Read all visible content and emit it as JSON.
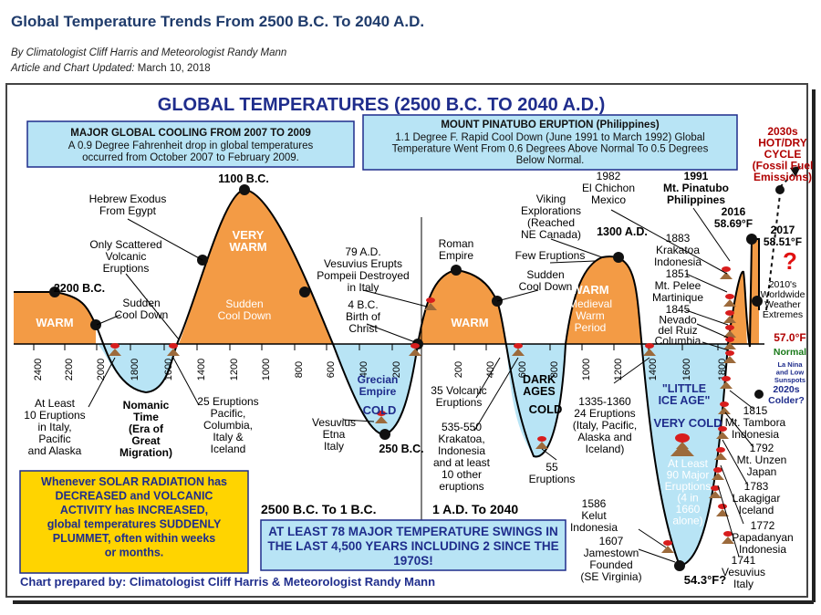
{
  "header": {
    "title": "Global Temperature Trends From 2500 B.C. To 2040 A.D.",
    "byline": "By Climatologist Cliff Harris and Meteorologist Randy Mann",
    "updated_label": "Article and Chart Updated:",
    "updated_date": "March 10, 2018"
  },
  "chart_data": {
    "type": "line",
    "title": "GLOBAL TEMPERATURES (2500 B.C. TO 2040 A.D.)",
    "xlabel": "",
    "ylabel": "",
    "x_ticks_bc": [
      "2400",
      "2200",
      "2000",
      "1800",
      "1600",
      "1400",
      "1200",
      "1000",
      "800",
      "600",
      "400",
      "200"
    ],
    "x_ticks_ad": [
      "200",
      "400",
      "600",
      "800",
      "1000",
      "1200",
      "1400",
      "1600",
      "1800"
    ],
    "era_labels": {
      "bc": "2500 B.C. To 1 B.C.",
      "ad": "1 A.D. To 2040"
    },
    "points": [
      {
        "label": "2200 B.C.",
        "year": -2200
      },
      {
        "label": "Sudden Cool Down",
        "year": -1950
      },
      {
        "label": "Hebrew Exodus From Egypt",
        "year": -1420
      },
      {
        "label": "1100 B.C.",
        "year": -1100
      },
      {
        "label": "Sudden Cool Down",
        "year": -760
      },
      {
        "label": "250 B.C.",
        "year": -250
      },
      {
        "label": "1 A.D.",
        "year": 1
      },
      {
        "label": "Roman Empire",
        "year": 250
      },
      {
        "label": "Sudden Cool Down",
        "year": 530
      },
      {
        "label": "1300 A.D.",
        "year": 1300
      },
      {
        "label": "54.3°F?",
        "year": 1680
      },
      {
        "label": "2016 58.69°F",
        "year": 2016
      },
      {
        "label": "2017 58.51°F",
        "year": 2017
      }
    ],
    "period_labels": [
      "WARM",
      "VERY WARM",
      "WARM",
      "WARM",
      "Medieval Warm Period",
      "Nomanic Time (Era of Great Migration)",
      "Grecian Empire",
      "COLD",
      "DARK AGES",
      "COLD",
      "\"LITTLE ICE AGE\"",
      "VERY COLD"
    ],
    "normal_label": "57.0°F",
    "normal_word": "Normal",
    "future": {
      "label": "2030s HOT/DRY CYCLE (Fossil Fuel Emissions)",
      "question": "?",
      "cold_label": "2020s Colder?",
      "enso": "La Nina and Low Sunspots"
    },
    "annotations": [
      "Sudden Cool Down",
      "Only Scattered Volcanic Eruptions",
      "Sudden Cool Down",
      "79 A.D. Vesuvius Erupts Pompeii Destroyed in Italy",
      "4 B.C. Birth of Christ",
      "Viking Explorations (Reached NE Canada)",
      "Few Eruptions",
      "Sudden Cool Down",
      "1982 El Chichon Mexico",
      "1991 Mt. Pinatubo Philippines",
      "1883 Krakatoa Indonesia",
      "1851 Mt. Pelee Martinique",
      "1845 Nevado del Ruiz Columbia",
      "2010's Worldwide Weather Extremes",
      "At Least 10 Eruptions in Italy, Pacific and Alaska",
      "25 Eruptions Pacific, Columbia, Italy & Iceland",
      "Vesuvius Etna Italy",
      "35 Volcanic Eruptions",
      "535-550 Krakatoa, Indonesia and at least 10 other eruptions",
      "55 Eruptions",
      "1335-1360 24 Eruptions (Italy, Pacific, Alaska and Iceland)",
      "At Least 90 Major Eruptions (4 in 1660 alone)",
      "1815 Mt. Tambora Indonesia",
      "1792 Mt. Unzen Japan",
      "1783 Lakagigar Iceland",
      "1772 Papadanyan Indonesia",
      "1741 Vesuvius Italy",
      "1586 Kelut Indonesia",
      "1607 Jamestown Founded (SE Virginia)"
    ],
    "box_cooling": {
      "title": "MAJOR GLOBAL COOLING FROM 2007 TO 2009",
      "text": "A 0.9 Degree Fahrenheit drop in global temperatures occurred from October 2007 to February 2009."
    },
    "box_pinatubo": {
      "title": "MOUNT PINATUBO ERUPTION (Philippines)",
      "text": "1.1 Degree F. Rapid Cool Down (June 1991 to March 1992) Global Temperature Went From 0.6 Degrees Above Normal To 0.5 Degrees Below Normal."
    },
    "box_solar": "Whenever SOLAR RADIATION has DECREASED and VOLCANIC ACTIVITY has INCREASED, global temperatures SUDDENLY PLUMMET, often within weeks or months.",
    "box_swings": "AT LEAST 78 MAJOR TEMPERATURE SWINGS IN THE LAST 4,500 YEARS INCLUDING 2 SINCE THE 1970S!",
    "credit": "Chart prepared by: Climatologist Cliff Harris & Meteorologist Randy Mann",
    "colors": {
      "warm": "#f39b45",
      "cold": "#b8e4f5",
      "title": "#1f2d8c",
      "red": "#b00000",
      "solar": "#ffd400",
      "green": "#1a7a1a"
    }
  }
}
